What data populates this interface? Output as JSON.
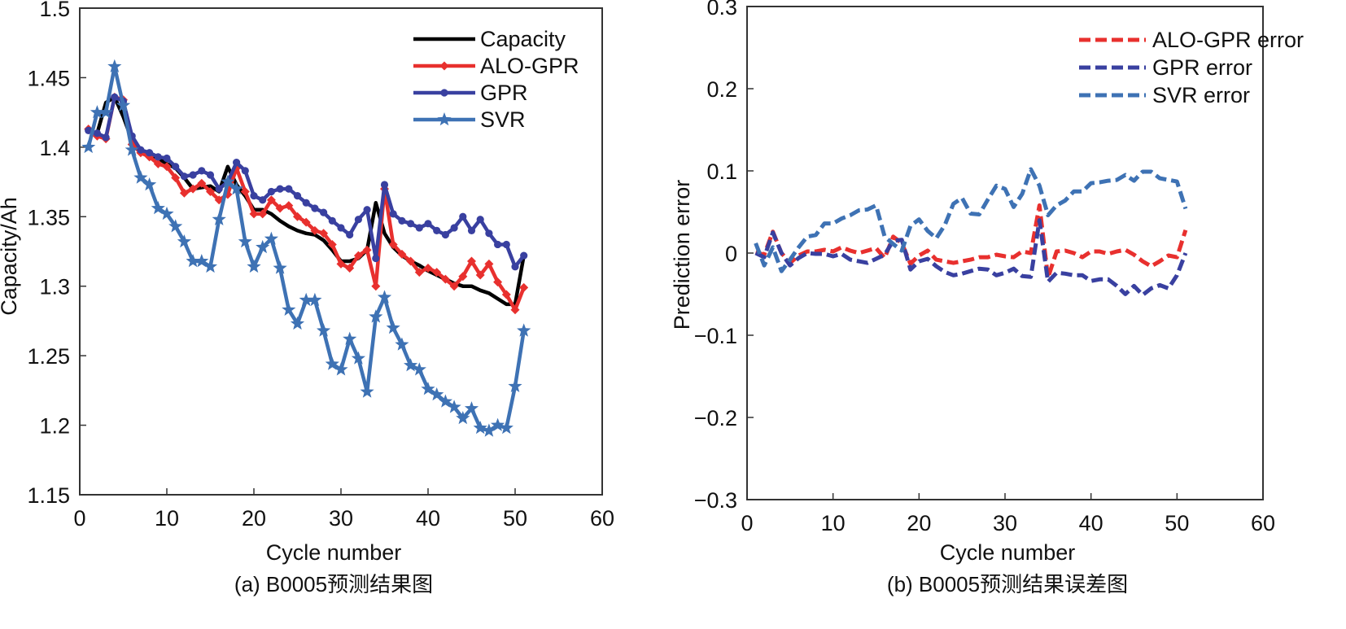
{
  "chart_data": [
    {
      "type": "line",
      "title": "",
      "caption": "(a) B0005预测结果图",
      "xlabel": "Cycle number",
      "ylabel": "Capacity/Ah",
      "xlim": [
        0,
        60
      ],
      "ylim": [
        1.15,
        1.5
      ],
      "xticks": [
        0,
        10,
        20,
        30,
        40,
        50,
        60
      ],
      "xtick_labels": [
        "0",
        "10",
        "20",
        "30",
        "40",
        "50",
        "60"
      ],
      "yticks": [
        1.15,
        1.2,
        1.25,
        1.3,
        1.35,
        1.4,
        1.45,
        1.5
      ],
      "ytick_labels": [
        "1.15",
        "1.2",
        "1.25",
        "1.3",
        "1.35",
        "1.4",
        "1.45",
        "1.5"
      ],
      "grid": false,
      "legend_position": "top-right",
      "x": [
        1,
        2,
        3,
        4,
        5,
        6,
        7,
        8,
        9,
        10,
        11,
        12,
        13,
        14,
        15,
        16,
        17,
        18,
        19,
        20,
        21,
        22,
        23,
        24,
        25,
        26,
        27,
        28,
        29,
        30,
        31,
        32,
        33,
        34,
        35,
        36,
        37,
        38,
        39,
        40,
        41,
        42,
        43,
        44,
        45,
        46,
        47,
        48,
        49,
        50,
        51
      ],
      "series": [
        {
          "name": "Capacity",
          "color": "#000000",
          "marker": "none",
          "values": [
            1.412,
            1.41,
            1.432,
            1.436,
            1.422,
            1.405,
            1.398,
            1.395,
            1.392,
            1.388,
            1.385,
            1.378,
            1.37,
            1.371,
            1.372,
            1.368,
            1.386,
            1.373,
            1.365,
            1.355,
            1.355,
            1.352,
            1.347,
            1.343,
            1.34,
            1.338,
            1.337,
            1.333,
            1.326,
            1.318,
            1.318,
            1.32,
            1.326,
            1.36,
            1.338,
            1.328,
            1.322,
            1.318,
            1.315,
            1.311,
            1.308,
            1.305,
            1.302,
            1.3,
            1.3,
            1.297,
            1.295,
            1.291,
            1.287,
            1.287,
            1.322
          ]
        },
        {
          "name": "ALO-GPR",
          "color": "#e8302e",
          "marker": "diamond",
          "values": [
            1.413,
            1.408,
            1.406,
            1.436,
            1.434,
            1.402,
            1.396,
            1.393,
            1.388,
            1.386,
            1.378,
            1.367,
            1.37,
            1.374,
            1.368,
            1.362,
            1.366,
            1.385,
            1.368,
            1.352,
            1.352,
            1.362,
            1.356,
            1.358,
            1.35,
            1.346,
            1.34,
            1.338,
            1.33,
            1.316,
            1.313,
            1.322,
            1.326,
            1.3,
            1.37,
            1.33,
            1.323,
            1.318,
            1.31,
            1.313,
            1.31,
            1.305,
            1.3,
            1.307,
            1.318,
            1.308,
            1.316,
            1.303,
            1.294,
            1.283,
            1.299
          ]
        },
        {
          "name": "GPR",
          "color": "#3940a0",
          "marker": "circle",
          "values": [
            1.412,
            1.41,
            1.407,
            1.436,
            1.433,
            1.408,
            1.398,
            1.396,
            1.393,
            1.392,
            1.386,
            1.379,
            1.38,
            1.383,
            1.38,
            1.37,
            1.375,
            1.389,
            1.383,
            1.365,
            1.362,
            1.368,
            1.37,
            1.37,
            1.365,
            1.36,
            1.356,
            1.353,
            1.347,
            1.342,
            1.337,
            1.348,
            1.355,
            1.32,
            1.373,
            1.352,
            1.347,
            1.345,
            1.342,
            1.345,
            1.34,
            1.337,
            1.342,
            1.35,
            1.34,
            1.348,
            1.338,
            1.33,
            1.33,
            1.314,
            1.322
          ]
        },
        {
          "name": "SVR",
          "color": "#3e72b4",
          "marker": "star",
          "values": [
            1.4,
            1.425,
            1.425,
            1.458,
            1.43,
            1.398,
            1.378,
            1.373,
            1.356,
            1.352,
            1.343,
            1.332,
            1.318,
            1.318,
            1.314,
            1.348,
            1.375,
            1.37,
            1.332,
            1.314,
            1.328,
            1.334,
            1.313,
            1.283,
            1.273,
            1.29,
            1.29,
            1.268,
            1.244,
            1.24,
            1.262,
            1.248,
            1.224,
            1.278,
            1.292,
            1.27,
            1.258,
            1.243,
            1.24,
            1.226,
            1.222,
            1.217,
            1.213,
            1.205,
            1.212,
            1.198,
            1.196,
            1.2,
            1.198,
            1.228,
            1.268
          ]
        }
      ]
    },
    {
      "type": "line",
      "title": "",
      "caption": "(b) B0005预测结果误差图",
      "xlabel": "Cycle number",
      "ylabel": "Prediction error",
      "xlim": [
        0,
        60
      ],
      "ylim": [
        -0.3,
        0.3
      ],
      "xticks": [
        0,
        10,
        20,
        30,
        40,
        50,
        60
      ],
      "xtick_labels": [
        "0",
        "10",
        "20",
        "30",
        "40",
        "50",
        "60"
      ],
      "yticks": [
        -0.3,
        -0.2,
        -0.1,
        0,
        0.1,
        0.2,
        0.3
      ],
      "ytick_labels": [
        "−0.3",
        "−0.2",
        "−0.1",
        "0",
        "0.1",
        "0.2",
        "0.3"
      ],
      "grid": false,
      "legend_position": "top-right",
      "x": [
        1,
        2,
        3,
        4,
        5,
        6,
        7,
        8,
        9,
        10,
        11,
        12,
        13,
        14,
        15,
        16,
        17,
        18,
        19,
        20,
        21,
        22,
        23,
        24,
        25,
        26,
        27,
        28,
        29,
        30,
        31,
        32,
        33,
        34,
        35,
        36,
        37,
        38,
        39,
        40,
        41,
        42,
        43,
        44,
        45,
        46,
        47,
        48,
        49,
        50,
        51
      ],
      "series": [
        {
          "name": "ALO-GPR error",
          "color": "#e8302e",
          "dash": "dashed",
          "values": [
            0.001,
            -0.002,
            0.026,
            0.0,
            -0.012,
            -0.003,
            0.002,
            0.002,
            0.004,
            0.002,
            0.007,
            0.003,
            0.0,
            0.003,
            0.006,
            -0.006,
            0.02,
            0.012,
            -0.013,
            -0.003,
            0.003,
            -0.008,
            -0.01,
            -0.012,
            -0.01,
            -0.008,
            -0.005,
            -0.005,
            -0.002,
            -0.004,
            -0.005,
            0.002,
            0.0,
            0.058,
            -0.03,
            0.002,
            0.003,
            0.0,
            -0.005,
            0.002,
            0.002,
            -0.001,
            0.002,
            0.004,
            -0.002,
            -0.01,
            -0.016,
            -0.01,
            -0.003,
            -0.005,
            0.028
          ]
        },
        {
          "name": "GPR error",
          "color": "#3940a0",
          "dash": "dashed",
          "values": [
            0.0,
            -0.005,
            0.025,
            0.0,
            -0.015,
            -0.006,
            0.0,
            -0.001,
            -0.001,
            -0.004,
            -0.001,
            -0.008,
            -0.01,
            -0.012,
            -0.007,
            -0.002,
            0.015,
            0.016,
            -0.02,
            -0.01,
            -0.007,
            -0.016,
            -0.023,
            -0.027,
            -0.025,
            -0.022,
            -0.019,
            -0.02,
            -0.027,
            -0.024,
            -0.019,
            -0.028,
            -0.029,
            0.04,
            -0.035,
            -0.024,
            -0.025,
            -0.027,
            -0.027,
            -0.034,
            -0.032,
            -0.032,
            -0.04,
            -0.05,
            -0.04,
            -0.051,
            -0.043,
            -0.039,
            -0.043,
            -0.027,
            0.0
          ]
        },
        {
          "name": "SVR error",
          "color": "#3e72b4",
          "dash": "dashed",
          "values": [
            0.012,
            -0.015,
            0.007,
            -0.022,
            -0.008,
            0.007,
            0.02,
            0.022,
            0.036,
            0.036,
            0.042,
            0.046,
            0.052,
            0.053,
            0.058,
            0.02,
            0.011,
            0.003,
            0.033,
            0.041,
            0.027,
            0.018,
            0.034,
            0.06,
            0.067,
            0.048,
            0.047,
            0.065,
            0.082,
            0.078,
            0.056,
            0.072,
            0.102,
            0.082,
            0.046,
            0.058,
            0.064,
            0.075,
            0.075,
            0.085,
            0.086,
            0.088,
            0.089,
            0.095,
            0.088,
            0.099,
            0.099,
            0.091,
            0.089,
            0.087,
            0.054
          ]
        }
      ]
    }
  ]
}
